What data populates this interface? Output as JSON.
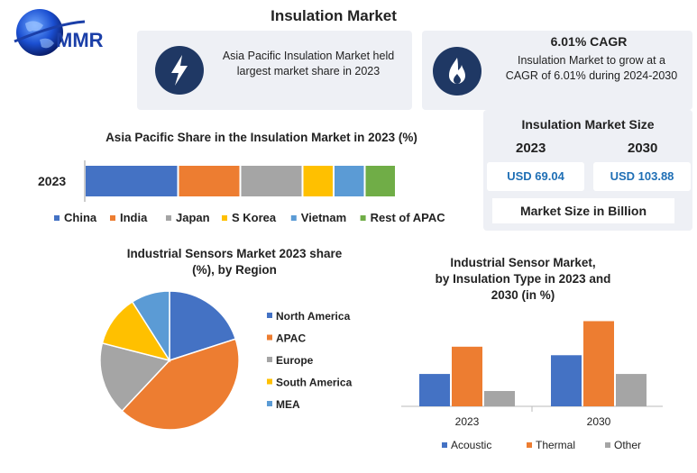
{
  "page": {
    "title": "Insulation Market",
    "logo_text": "MMR"
  },
  "cards": {
    "left_text_line1": "Asia Pacific Insulation Market held",
    "left_text_line2": "largest market share in 2023",
    "left_icon": "lightning-bolt-icon",
    "right_heading": "6.01% CAGR",
    "right_text_line1": "Insulation Market to grow at a",
    "right_text_line2": "CAGR of 6.01% during 2024-2030",
    "right_icon": "flame-icon"
  },
  "market_size": {
    "title": "Insulation Market Size",
    "year1": "2023",
    "year2": "2030",
    "value1": "USD 69.04",
    "value2": "USD 103.88",
    "unit_label": "Market Size in Billion"
  },
  "chart_data": [
    {
      "type": "bar",
      "orientation": "horizontal-stacked",
      "title": "Asia Pacific Share in the Insulation Market in 2023 (%)",
      "categories": [
        "2023"
      ],
      "series": [
        {
          "name": "China",
          "values": [
            30
          ],
          "color": "#4472c4"
        },
        {
          "name": "India",
          "values": [
            20
          ],
          "color": "#ed7d31"
        },
        {
          "name": "Japan",
          "values": [
            20
          ],
          "color": "#a5a5a5"
        },
        {
          "name": "S Korea",
          "values": [
            10
          ],
          "color": "#ffc000"
        },
        {
          "name": "Vietnam",
          "values": [
            10
          ],
          "color": "#5b9bd5"
        },
        {
          "name": "Rest of APAC",
          "values": [
            10
          ],
          "color": "#70ad47"
        }
      ],
      "legend": "bottom"
    },
    {
      "type": "pie",
      "title_line1": "Industrial Sensors Market 2023 share",
      "title_line2": "(%), by Region",
      "labels": [
        "North America",
        "APAC",
        "Europe",
        "South America",
        "MEA"
      ],
      "values": [
        20,
        42,
        17,
        12,
        9
      ],
      "colors": [
        "#4472c4",
        "#ed7d31",
        "#a5a5a5",
        "#ffc000",
        "#5b9bd5"
      ],
      "legend": "right"
    },
    {
      "type": "bar",
      "title_line1": "Industrial Sensor Market,",
      "title_line2": "by Insulation Type in 2023 and",
      "title_line3": "2030 (in %)",
      "categories": [
        "2023",
        "2030"
      ],
      "series": [
        {
          "name": "Acoustic",
          "values": [
            19,
            30
          ],
          "color": "#4472c4"
        },
        {
          "name": "Thermal",
          "values": [
            35,
            50
          ],
          "color": "#ed7d31"
        },
        {
          "name": "Other",
          "values": [
            9,
            19
          ],
          "color": "#a5a5a5"
        }
      ],
      "ylim": [
        0,
        55
      ],
      "legend": "bottom"
    }
  ]
}
